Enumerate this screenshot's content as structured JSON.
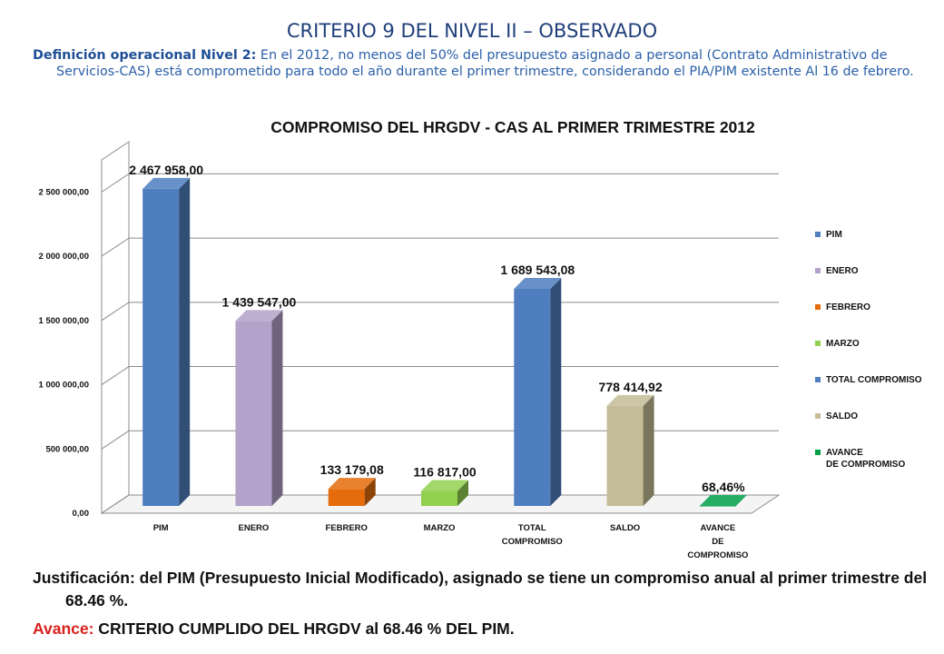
{
  "header": {
    "title": "CRITERIO 9 DEL NIVEL II – OBSERVADO",
    "definition_label": "Definición operacional Nivel 2:",
    "definition_text": " En el 2012, no menos del 50% del presupuesto asignado a personal (Contrato Administrativo de Servicios-CAS) está comprometido para todo el año durante el primer trimestre, considerando el PIA/PIM existente Al 16 de febrero."
  },
  "chart_data": {
    "type": "bar",
    "title": "COMPROMISO DEL HRGDV - CAS AL PRIMER TRIMESTRE 2012",
    "xlabel": "",
    "ylabel": "",
    "ylim": [
      0,
      2750000
    ],
    "yticks": [
      0,
      500000,
      1000000,
      1500000,
      2000000,
      2500000
    ],
    "ytick_labels": [
      "0,00",
      "500 000,00",
      "1 000 000,00",
      "1 500 000,00",
      "2 000 000,00",
      "2 500 000,00"
    ],
    "grid": true,
    "legend_position": "right",
    "categories": [
      "PIM",
      "ENERO",
      "FEBRERO",
      "MARZO",
      "TOTAL\nCOMPROMISO",
      "SALDO",
      "AVANCE\nDE\nCOMPROMISO"
    ],
    "values": [
      2467958.0,
      1439547.0,
      133179.08,
      116817.0,
      1689543.08,
      778414.92,
      0.6846
    ],
    "value_labels": [
      "2 467 958,00",
      "1 439 547,00",
      "133 179,08",
      "116 817,00",
      "1 689 543,08",
      "778 414,92",
      "68,46%"
    ],
    "colors": [
      "#4f7ec0",
      "#b3a2c9",
      "#e46c0a",
      "#92d050",
      "#4f7ec0",
      "#c4bc96",
      "#00a04a"
    ],
    "legend": [
      "PIM",
      "ENERO",
      "FEBRERO",
      "MARZO",
      "TOTAL COMPROMISO",
      "SALDO",
      "AVANCE\nDE COMPROMISO"
    ]
  },
  "footer": {
    "justification": "Justificación: del PIM (Presupuesto Inicial Modificado), asignado se tiene un compromiso anual al primer trimestre del 68.46 %.",
    "avance_label": "Avance:",
    "avance_text": " CRITERIO  CUMPLIDO DEL HRGDV al 68.46 % DEL PIM."
  }
}
